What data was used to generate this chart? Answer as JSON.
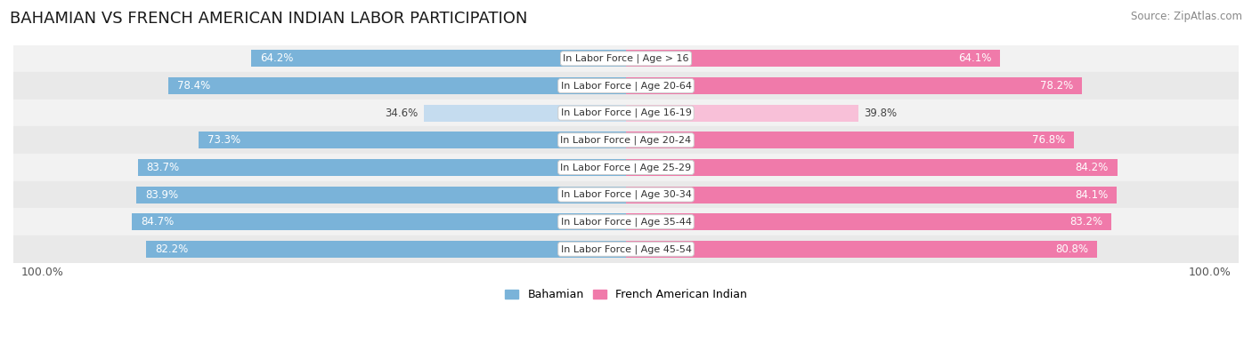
{
  "title": "BAHAMIAN VS FRENCH AMERICAN INDIAN LABOR PARTICIPATION",
  "source": "Source: ZipAtlas.com",
  "categories": [
    "In Labor Force | Age > 16",
    "In Labor Force | Age 20-64",
    "In Labor Force | Age 16-19",
    "In Labor Force | Age 20-24",
    "In Labor Force | Age 25-29",
    "In Labor Force | Age 30-34",
    "In Labor Force | Age 35-44",
    "In Labor Force | Age 45-54"
  ],
  "bahamian": [
    64.2,
    78.4,
    34.6,
    73.3,
    83.7,
    83.9,
    84.7,
    82.2
  ],
  "french": [
    64.1,
    78.2,
    39.8,
    76.8,
    84.2,
    84.1,
    83.2,
    80.8
  ],
  "bahamian_color": "#7ab3d9",
  "bahamian_light_color": "#c5dcef",
  "french_color": "#f07aaa",
  "french_light_color": "#f8c0d8",
  "max_value": 100.0,
  "title_fontsize": 13,
  "label_fontsize": 8.0,
  "value_fontsize": 8.5,
  "legend_fontsize": 9,
  "source_fontsize": 8.5,
  "row_colors": [
    "#f0f0f0",
    "#e8e8e8"
  ],
  "bar_height": 0.62
}
